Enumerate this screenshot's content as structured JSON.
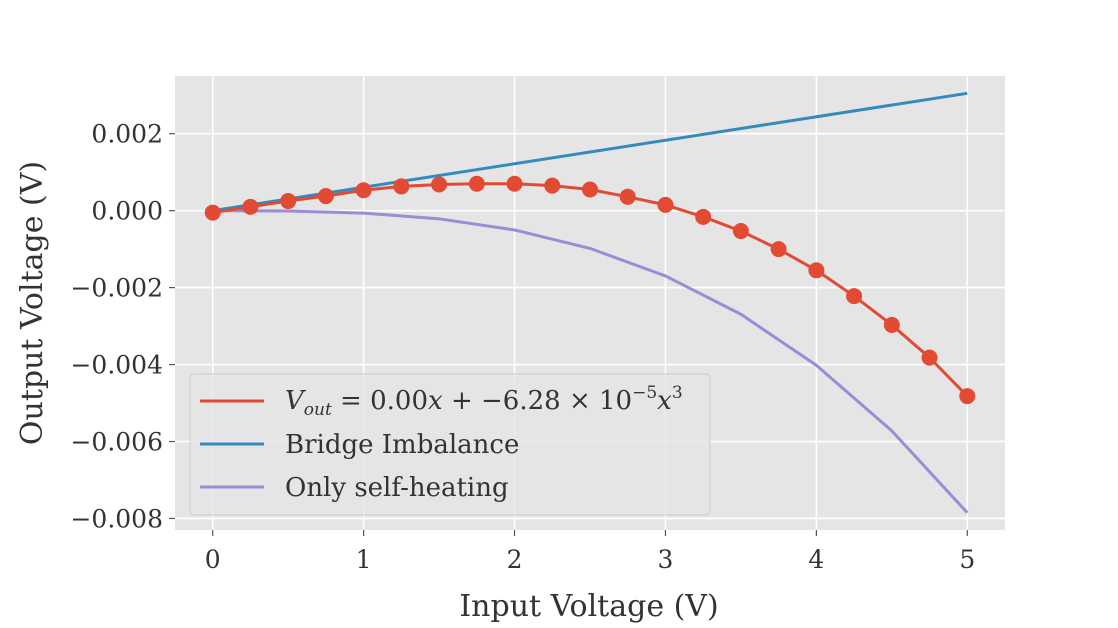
{
  "chart_data": {
    "type": "line",
    "title": "",
    "xlabel": "Input Voltage (V)",
    "ylabel": "Output Voltage (V)",
    "xlim": [
      -0.25,
      5.25
    ],
    "ylim": [
      -0.0083,
      0.0035
    ],
    "xticks": [
      0,
      1,
      2,
      3,
      4,
      5
    ],
    "xtick_labels": [
      "0",
      "1",
      "2",
      "3",
      "4",
      "5"
    ],
    "yticks": [
      0.002,
      0.0,
      -0.002,
      -0.004,
      -0.006,
      -0.008
    ],
    "ytick_labels": [
      "0.002",
      "0.000",
      "−0.002",
      "−0.004",
      "−0.006",
      "−0.008"
    ],
    "grid": true,
    "legend_position": "lower-left",
    "series": [
      {
        "name": "V_out = 0.00x + −6.28 × 10^−5 x^3",
        "color": "#E24A33",
        "kind": "line+markers",
        "x": [
          0,
          0.25,
          0.5,
          0.75,
          1.0,
          1.25,
          1.5,
          1.75,
          2.0,
          2.25,
          2.5,
          2.75,
          3.0,
          3.25,
          3.5,
          3.75,
          4.0,
          4.25,
          4.5,
          4.75,
          5.0
        ],
        "y": [
          -5e-05,
          0.0001,
          0.00025,
          0.00038,
          0.00053,
          0.00063,
          0.00068,
          0.0007,
          0.0007,
          0.00065,
          0.00055,
          0.00036,
          0.00015,
          -0.00016,
          -0.00053,
          -0.001,
          -0.00155,
          -0.00222,
          -0.00297,
          -0.00382,
          -0.00482
        ]
      },
      {
        "name": "Bridge Imbalance",
        "color": "#348ABD",
        "kind": "line",
        "x": [
          0,
          5
        ],
        "y": [
          0.0,
          0.00305
        ]
      },
      {
        "name": "Only self-heating",
        "color": "#988ED5",
        "kind": "line",
        "x": [
          0,
          0.5,
          1.0,
          1.5,
          2.0,
          2.5,
          3.0,
          3.5,
          4.0,
          4.5,
          5.0
        ],
        "y": [
          0.0,
          -8e-06,
          -6.3e-05,
          -0.000212,
          -0.000502,
          -0.000981,
          -0.001696,
          -0.002693,
          -0.004019,
          -0.005723,
          -0.00785
        ]
      }
    ],
    "legend": {
      "entries": [
        {
          "label_main": "V",
          "label_sub": "out",
          "label_rest_a": " = 0.00",
          "label_var1": "x",
          "label_rest_b": " + −6.28 × 10",
          "label_sup": "−5",
          "label_var2": "x",
          "label_sup2": "3"
        },
        {
          "label": "Bridge Imbalance"
        },
        {
          "label": "Only self-heating"
        }
      ]
    }
  }
}
